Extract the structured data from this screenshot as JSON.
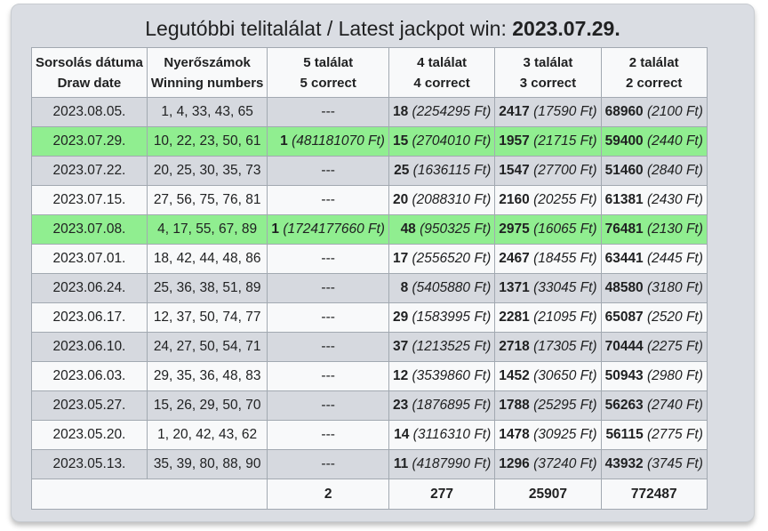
{
  "title": {
    "prefix": "Legutóbbi telitalálat / Latest jackpot win: ",
    "date": "2023.07.29."
  },
  "headers": [
    {
      "hu": "Sorsolás dátuma",
      "en": "Draw date"
    },
    {
      "hu": "Nyerőszámok",
      "en": "Winning numbers"
    },
    {
      "hu": "5 találat",
      "en": "5 correct"
    },
    {
      "hu": "4 találat",
      "en": "4 correct"
    },
    {
      "hu": "3 találat",
      "en": "3 correct"
    },
    {
      "hu": "2 találat",
      "en": "2 correct"
    }
  ],
  "rows": [
    {
      "date": "2023.08.05.",
      "numbers": "1, 4, 33, 43, 65",
      "jackpot": false,
      "c5": "---",
      "c5p": "",
      "c4": "18",
      "c4p": "(2254295 Ft)",
      "c3": "2417",
      "c3p": "(17590 Ft)",
      "c2": "68960",
      "c2p": "(2100 Ft)"
    },
    {
      "date": "2023.07.29.",
      "numbers": "10, 22, 23, 50, 61",
      "jackpot": true,
      "c5": "1",
      "c5p": "(481181070 Ft)",
      "c4": "15",
      "c4p": "(2704010 Ft)",
      "c3": "1957",
      "c3p": "(21715 Ft)",
      "c2": "59400",
      "c2p": "(2440 Ft)"
    },
    {
      "date": "2023.07.22.",
      "numbers": "20, 25, 30, 35, 73",
      "jackpot": false,
      "c5": "---",
      "c5p": "",
      "c4": "25",
      "c4p": "(1636115 Ft)",
      "c3": "1547",
      "c3p": "(27700 Ft)",
      "c2": "51460",
      "c2p": "(2840 Ft)"
    },
    {
      "date": "2023.07.15.",
      "numbers": "27, 56, 75, 76, 81",
      "jackpot": false,
      "c5": "---",
      "c5p": "",
      "c4": "20",
      "c4p": "(2088310 Ft)",
      "c3": "2160",
      "c3p": "(20255 Ft)",
      "c2": "61381",
      "c2p": "(2430 Ft)"
    },
    {
      "date": "2023.07.08.",
      "numbers": "4, 17, 55, 67, 89",
      "jackpot": true,
      "c5": "1",
      "c5p": "(1724177660 Ft)",
      "c4": "48",
      "c4p": "(950325 Ft)",
      "c3": "2975",
      "c3p": "(16065 Ft)",
      "c2": "76481",
      "c2p": "(2130 Ft)"
    },
    {
      "date": "2023.07.01.",
      "numbers": "18, 42, 44, 48, 86",
      "jackpot": false,
      "c5": "---",
      "c5p": "",
      "c4": "17",
      "c4p": "(2556520 Ft)",
      "c3": "2467",
      "c3p": "(18455 Ft)",
      "c2": "63441",
      "c2p": "(2445 Ft)"
    },
    {
      "date": "2023.06.24.",
      "numbers": "25, 36, 38, 51, 89",
      "jackpot": false,
      "c5": "---",
      "c5p": "",
      "c4": "8",
      "c4p": "(5405880 Ft)",
      "c3": "1371",
      "c3p": "(33045 Ft)",
      "c2": "48580",
      "c2p": "(3180 Ft)"
    },
    {
      "date": "2023.06.17.",
      "numbers": "12, 37, 50, 74, 77",
      "jackpot": false,
      "c5": "---",
      "c5p": "",
      "c4": "29",
      "c4p": "(1583995 Ft)",
      "c3": "2281",
      "c3p": "(21095 Ft)",
      "c2": "65087",
      "c2p": "(2520 Ft)"
    },
    {
      "date": "2023.06.10.",
      "numbers": "24, 27, 50, 54, 71",
      "jackpot": false,
      "c5": "---",
      "c5p": "",
      "c4": "37",
      "c4p": "(1213525 Ft)",
      "c3": "2718",
      "c3p": "(17305 Ft)",
      "c2": "70444",
      "c2p": "(2275 Ft)"
    },
    {
      "date": "2023.06.03.",
      "numbers": "29, 35, 36, 48, 83",
      "jackpot": false,
      "c5": "---",
      "c5p": "",
      "c4": "12",
      "c4p": "(3539860 Ft)",
      "c3": "1452",
      "c3p": "(30650 Ft)",
      "c2": "50943",
      "c2p": "(2980 Ft)"
    },
    {
      "date": "2023.05.27.",
      "numbers": "15, 26, 29, 50, 70",
      "jackpot": false,
      "c5": "---",
      "c5p": "",
      "c4": "23",
      "c4p": "(1876895 Ft)",
      "c3": "1788",
      "c3p": "(25295 Ft)",
      "c2": "56263",
      "c2p": "(2740 Ft)"
    },
    {
      "date": "2023.05.20.",
      "numbers": "1, 20, 42, 43, 62",
      "jackpot": false,
      "c5": "---",
      "c5p": "",
      "c4": "14",
      "c4p": "(3116310 Ft)",
      "c3": "1478",
      "c3p": "(30925 Ft)",
      "c2": "56115",
      "c2p": "(2775 Ft)"
    },
    {
      "date": "2023.05.13.",
      "numbers": "35, 39, 80, 88, 90",
      "jackpot": false,
      "c5": "---",
      "c5p": "",
      "c4": "11",
      "c4p": "(4187990 Ft)",
      "c3": "1296",
      "c3p": "(37240 Ft)",
      "c2": "43932",
      "c2p": "(3745 Ft)"
    }
  ],
  "totals": {
    "c5": "2",
    "c4": "277",
    "c3": "25907",
    "c2": "772487"
  },
  "colors": {
    "jackpot_row": "#90ee90",
    "odd_row": "#d6d9df",
    "even_row": "#f8f9fa",
    "border": "#a2a9b1"
  }
}
